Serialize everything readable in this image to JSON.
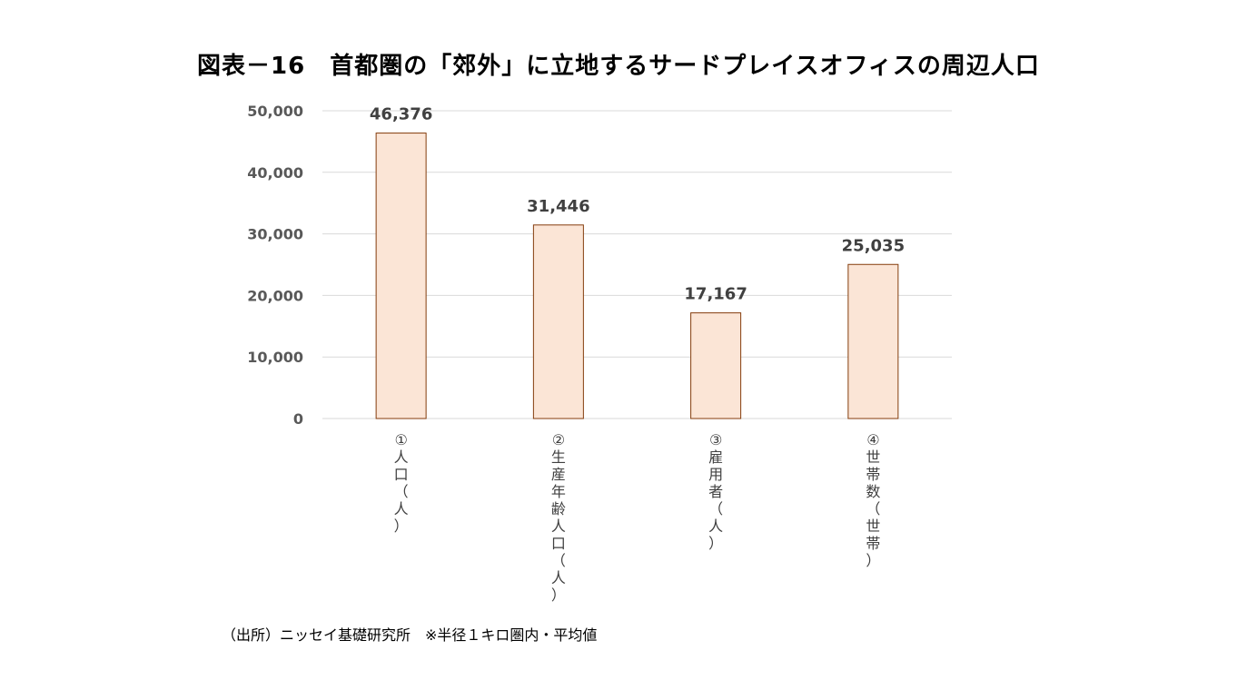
{
  "chart_data": {
    "type": "bar",
    "title": "図表－16　首都圏の「郊外」に立地するサードプレイスオフィスの周辺人口",
    "categories": [
      "①人口（人）",
      "②生産年齢人口（人）",
      "③雇用者（人）",
      "④世帯数（世帯）"
    ],
    "values": [
      46376,
      31446,
      17167,
      25035
    ],
    "value_labels": [
      "46,376",
      "31,446",
      "17,167",
      "25,035"
    ],
    "yticks": [
      0,
      10000,
      20000,
      30000,
      40000,
      50000
    ],
    "ytick_labels": [
      "0",
      "10,000",
      "20,000",
      "30,000",
      "40,000",
      "50,000"
    ],
    "ylim": [
      0,
      50000
    ],
    "xlabel": "",
    "ylabel": "",
    "grid": true,
    "colors": {
      "bar_fill": "#FBE5D6",
      "bar_stroke": "#843C0C",
      "grid": "#D9D9D9"
    }
  },
  "source": "（出所）ニッセイ基礎研究所　※半径１キロ圏内・平均値"
}
